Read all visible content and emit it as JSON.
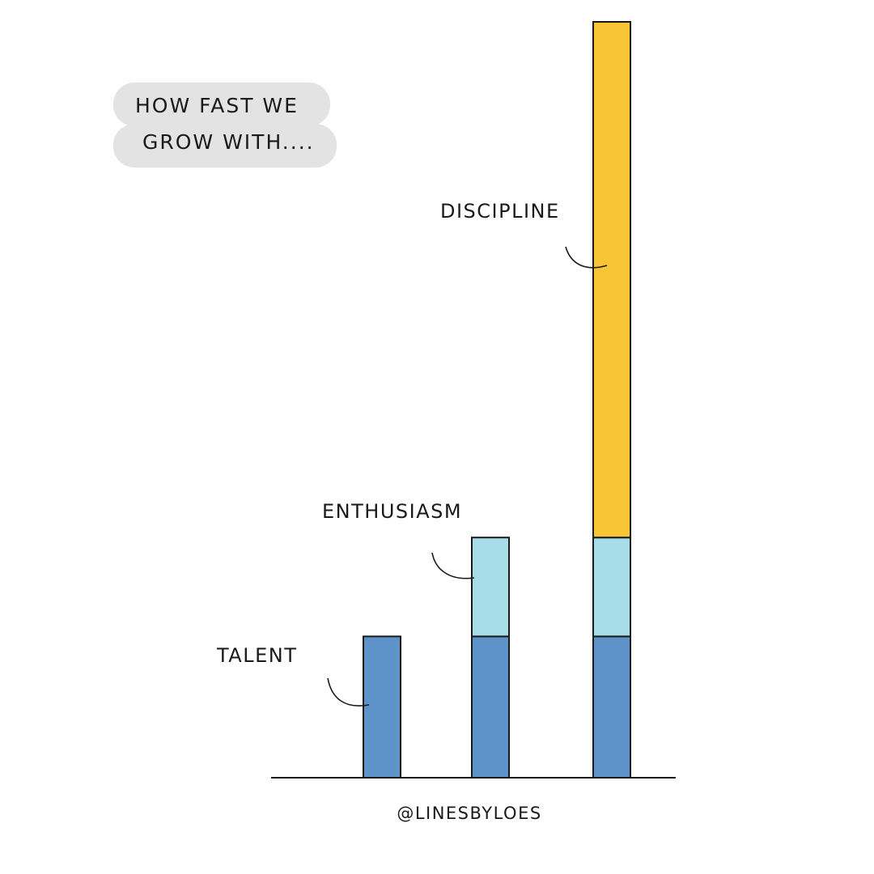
{
  "title_lines": [
    "HOW FAST WE",
    "GROW WITH...."
  ],
  "credit": "@LINESBYLOES",
  "chart_data": {
    "type": "bar",
    "stacked": true,
    "categories": [
      "",
      "",
      ""
    ],
    "series": [
      {
        "name": "TALENT",
        "values": [
          1,
          1,
          1
        ],
        "color": "#5e93c9"
      },
      {
        "name": "ENTHUSIASM",
        "values": [
          0,
          0.7,
          0.7
        ],
        "color": "#a8dde8"
      },
      {
        "name": "DISCIPLINE",
        "values": [
          0,
          0,
          3.65
        ],
        "color": "#f8c537"
      }
    ],
    "annotations": [
      "TALENT",
      "ENTHUSIASM",
      "DISCIPLINE"
    ],
    "ylim": [
      0,
      5.35
    ],
    "axis": {
      "x_line": true,
      "y_line": false,
      "grid": false
    }
  }
}
